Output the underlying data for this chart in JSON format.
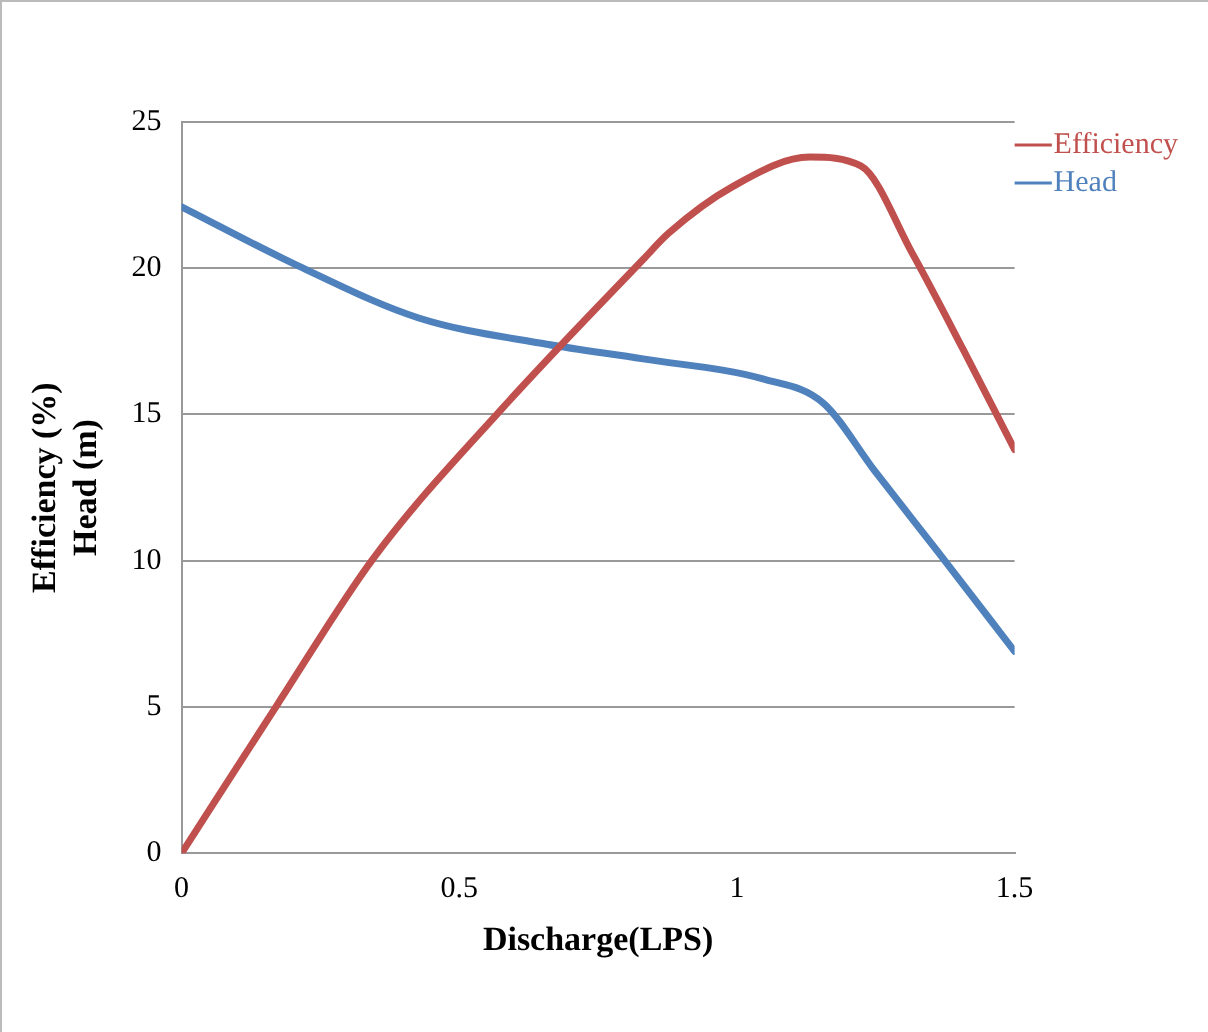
{
  "chart_data": {
    "type": "line",
    "xlabel": "Discharge(LPS)",
    "ylabel": "Efficiency (%)\nHead (m)",
    "xlim": [
      0,
      1.5
    ],
    "xticks": [
      0,
      0.5,
      1,
      1.5
    ],
    "ylim": [
      0,
      25
    ],
    "yticks": [
      0,
      5,
      10,
      15,
      20,
      25
    ],
    "grid": "y",
    "legend": "top right",
    "marker": "none",
    "line_style": "solid",
    "series": [
      {
        "name": "Efficiency",
        "color": "#c0504d",
        "x": [
          0,
          0.173,
          0.346,
          0.577,
          0.831,
          0.877,
          0.993,
          1.131,
          1.223,
          1.316,
          1.408,
          1.5
        ],
        "values": [
          0,
          5.1,
          10.1,
          15.2,
          20.3,
          21.2,
          22.8,
          23.8,
          23.5,
          20.5,
          17.2,
          13.8
        ]
      },
      {
        "name": "Head",
        "color": "#4f81bd",
        "x": [
          0,
          0.208,
          0.427,
          0.658,
          0.831,
          1.05,
          1.155,
          1.247,
          1.362,
          1.5
        ],
        "values": [
          22.1,
          20.1,
          18.3,
          17.4,
          16.9,
          16.2,
          15.4,
          13.1,
          10.3,
          6.9
        ]
      }
    ]
  }
}
